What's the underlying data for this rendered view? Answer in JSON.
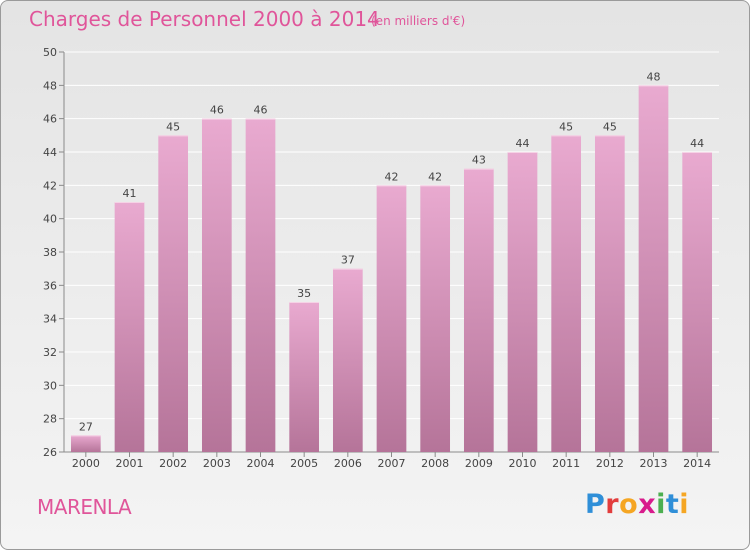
{
  "header": {
    "title": "Charges de Personnel 2000 à 2014",
    "subtitle": "(en milliers d'€)"
  },
  "footer": {
    "commune": "MARENLA",
    "logo_letters": [
      {
        "ch": "P",
        "color": "#2f8fd8"
      },
      {
        "ch": "r",
        "color": "#e23c3c"
      },
      {
        "ch": "o",
        "color": "#f5a623"
      },
      {
        "ch": "x",
        "color": "#d81b8c"
      },
      {
        "ch": "i",
        "color": "#4caf50"
      },
      {
        "ch": "t",
        "color": "#2f8fd8"
      },
      {
        "ch": "i",
        "color": "#f5a623"
      }
    ]
  },
  "colors": {
    "bar_top": "#e9aad0",
    "bar_bottom": "#b57499",
    "grid": "#ffffff",
    "axis": "#8a8a8a"
  },
  "chart_data": {
    "type": "bar",
    "categories": [
      "2000",
      "2001",
      "2002",
      "2003",
      "2004",
      "2005",
      "2006",
      "2007",
      "2008",
      "2009",
      "2010",
      "2011",
      "2012",
      "2013",
      "2014"
    ],
    "values": [
      27,
      41,
      45,
      46,
      46,
      35,
      37,
      42,
      42,
      43,
      44,
      45,
      45,
      48,
      44
    ],
    "ylim": [
      26,
      50
    ],
    "yticks": [
      26,
      28,
      30,
      32,
      34,
      36,
      38,
      40,
      42,
      44,
      46,
      48,
      50
    ],
    "grid": true
  }
}
